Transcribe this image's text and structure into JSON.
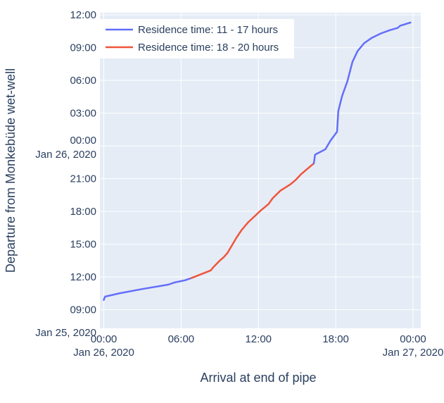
{
  "colors": {
    "plot_bg": "#e5ecf6",
    "grid": "#ffffff",
    "series_blue": "#636efa",
    "series_red": "#ef553b",
    "text": "#2a3f5f"
  },
  "chart_data": {
    "type": "line",
    "xlabel": "Arrival at end of pipe",
    "ylabel": "Departure from Monkebüde wet-well",
    "x_axis": {
      "range_hours": [
        -0.3,
        24.6
      ],
      "ticks": [
        {
          "hours": 0,
          "lines": [
            "00:00",
            "Jan 26, 2020"
          ]
        },
        {
          "hours": 6,
          "lines": [
            "06:00"
          ]
        },
        {
          "hours": 12,
          "lines": [
            "12:00"
          ]
        },
        {
          "hours": 18,
          "lines": [
            "18:00"
          ]
        },
        {
          "hours": 24,
          "lines": [
            "00:00",
            "Jan 27, 2020"
          ]
        }
      ]
    },
    "y_axis": {
      "range_hours": [
        7.3,
        36.2
      ],
      "ticks": [
        {
          "hours": 9,
          "lines": [
            "09:00"
          ]
        },
        {
          "hours": 12,
          "lines": [
            "12:00"
          ]
        },
        {
          "hours": 15,
          "lines": [
            "15:00"
          ]
        },
        {
          "hours": 18,
          "lines": [
            "18:00"
          ]
        },
        {
          "hours": 21,
          "lines": [
            "21:00"
          ]
        },
        {
          "hours": 24,
          "lines": [
            "00:00",
            "Jan 26, 2020"
          ]
        },
        {
          "hours": 27,
          "lines": [
            "03:00"
          ]
        },
        {
          "hours": 30,
          "lines": [
            "06:00"
          ]
        },
        {
          "hours": 33,
          "lines": [
            "09:00"
          ]
        },
        {
          "hours": 36,
          "lines": [
            "12:00"
          ]
        }
      ],
      "corner_label": "Jan 25, 2020"
    },
    "legend": {
      "placement": "top-left"
    },
    "grid": true,
    "series": [
      {
        "name": "Residence time: 11 - 17 hours",
        "color": "#636efa",
        "x_hours": [
          0.0,
          0.1,
          1.2,
          3.0,
          5.0,
          5.5,
          6.3,
          6.8
        ],
        "y_hours": [
          9.9,
          10.2,
          10.5,
          10.9,
          11.3,
          11.5,
          11.7,
          11.9
        ]
      },
      {
        "name": "Residence time: 18 - 20 hours",
        "color": "#ef553b",
        "x_hours": [
          6.8,
          8.3,
          8.5,
          9.0,
          9.3,
          9.6,
          10.0,
          10.3,
          10.7,
          11.2,
          12.1,
          12.8,
          13.1,
          13.7,
          14.5,
          14.9,
          15.3,
          15.7,
          16.0,
          16.3
        ],
        "y_hours": [
          11.9,
          12.6,
          12.9,
          13.5,
          13.8,
          14.2,
          15.0,
          15.6,
          16.3,
          17.0,
          18.0,
          18.7,
          19.2,
          19.9,
          20.5,
          20.9,
          21.4,
          21.8,
          22.1,
          22.4
        ]
      },
      {
        "name": "",
        "color": "#636efa",
        "x_hours": [
          16.3,
          16.4,
          17.2,
          17.6,
          18.1,
          18.2,
          18.5,
          18.9,
          19.3,
          19.7,
          20.2,
          20.8,
          21.5,
          22.2,
          22.8,
          23.0,
          23.8
        ],
        "y_hours": [
          22.4,
          23.2,
          23.7,
          24.5,
          25.3,
          27.2,
          28.6,
          29.9,
          31.7,
          32.7,
          33.4,
          33.9,
          34.3,
          34.6,
          34.8,
          35.0,
          35.3
        ]
      }
    ]
  }
}
